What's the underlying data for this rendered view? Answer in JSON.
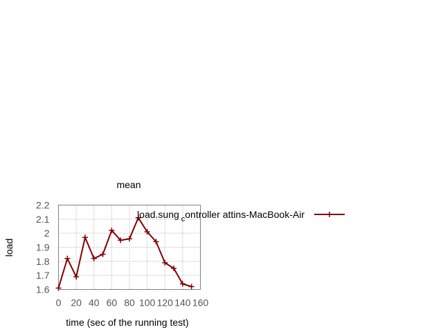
{
  "chart_data": {
    "type": "line",
    "title": "mean",
    "xlabel": "time (sec of the running test)",
    "ylabel": "load",
    "xlim": [
      0,
      160
    ],
    "ylim": [
      1.6,
      2.2
    ],
    "x_ticks": [
      "0",
      "20",
      "40",
      "60",
      "80",
      "100",
      "120",
      "140",
      "160"
    ],
    "y_ticks": [
      "1.6",
      "1.7",
      "1.8",
      "1.9",
      "2",
      "2.1",
      "2.2"
    ],
    "grid": true,
    "legend_position": "top-right",
    "series": [
      {
        "name": "load.sung_controller at tins-MacBook-Air",
        "legend_parts": {
          "before": "load.sung",
          "subscript": "c",
          "after": "ontroller attins-MacBook-Air"
        },
        "color": "#800000",
        "x": [
          0,
          10,
          20,
          30,
          40,
          50,
          60,
          70,
          80,
          90,
          100,
          110,
          120,
          130,
          140,
          150
        ],
        "y": [
          1.61,
          1.82,
          1.69,
          1.97,
          1.82,
          1.85,
          2.02,
          1.95,
          1.96,
          2.11,
          2.01,
          1.94,
          1.79,
          1.75,
          1.64,
          1.62
        ]
      }
    ]
  }
}
